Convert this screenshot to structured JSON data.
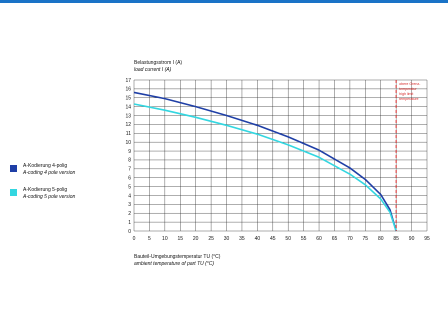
{
  "colors": {
    "header_bar": "#1a73c7",
    "grid": "#333333",
    "series_4pole": "#1f3fa6",
    "series_5pole": "#33d6e0",
    "limit_line": "#d62828"
  },
  "legend": [
    {
      "line1": "A-Kodierung 4-polig",
      "line2": "A-coding 4 pole version",
      "color": "#1f3fa6"
    },
    {
      "line1": "A-Kodierung 5-polig",
      "line2": "A-coding 5 pole version",
      "color": "#33d6e0"
    }
  ],
  "chart_data": {
    "type": "line",
    "ylabel_line1": "Belastungsstrom I (A)",
    "ylabel_line2": "load current I (A)",
    "xlabel_line1": "Bauteil-Umgebungstemperatur TU (°C)",
    "xlabel_line2": "ambient temperature of part TU (°C)",
    "xlim": [
      0,
      95
    ],
    "ylim": [
      0,
      17
    ],
    "x_ticks": [
      0,
      5,
      10,
      15,
      20,
      25,
      30,
      35,
      40,
      45,
      50,
      55,
      60,
      65,
      70,
      75,
      80,
      85,
      90,
      95
    ],
    "y_ticks": [
      0,
      1,
      2,
      3,
      4,
      5,
      6,
      7,
      8,
      9,
      10,
      11,
      12,
      13,
      14,
      15,
      16,
      17
    ],
    "grid": true,
    "series": [
      {
        "name": "A-Kodierung 4-polig / A-coding 4 pole version",
        "x": [
          0,
          10,
          20,
          30,
          40,
          50,
          60,
          70,
          75,
          80,
          83,
          85
        ],
        "y": [
          15.6,
          14.9,
          14.0,
          13.0,
          11.9,
          10.6,
          9.1,
          7.1,
          5.8,
          4.1,
          2.4,
          0
        ]
      },
      {
        "name": "A-Kodierung 5-polig / A-coding 5 pole version",
        "x": [
          0,
          10,
          20,
          30,
          40,
          50,
          60,
          70,
          75,
          80,
          83,
          85
        ],
        "y": [
          14.3,
          13.6,
          12.8,
          11.9,
          10.9,
          9.7,
          8.3,
          6.4,
          5.2,
          3.6,
          2.1,
          0
        ]
      }
    ],
    "limit_line": {
      "x": 85
    },
    "annotation": [
      "obere Grenz-",
      "temperatur",
      "high limit",
      "temperature"
    ]
  }
}
